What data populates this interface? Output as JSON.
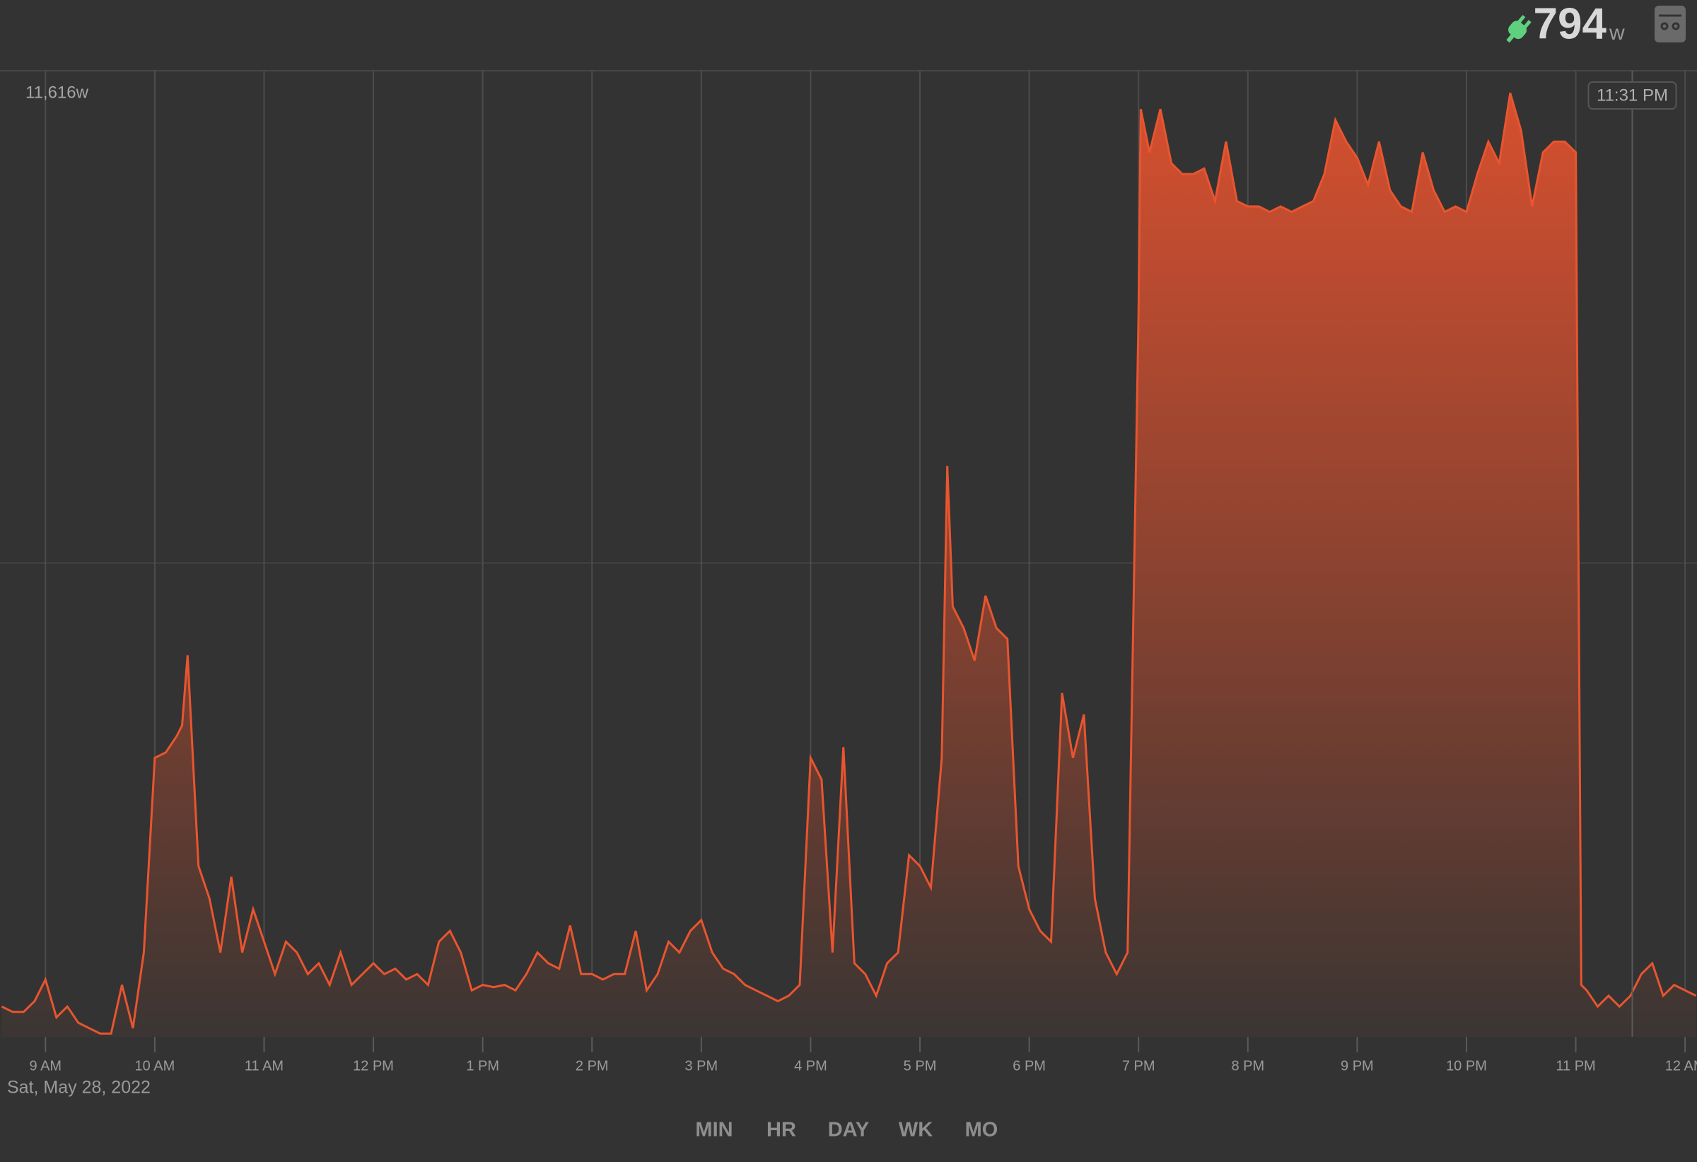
{
  "header": {
    "power": "794",
    "unit": "w"
  },
  "chart_data": {
    "type": "area",
    "x": [
      8.6,
      8.7,
      8.8,
      8.9,
      9.0,
      9.1,
      9.2,
      9.3,
      9.4,
      9.5,
      9.6,
      9.7,
      9.8,
      9.9,
      10.0,
      10.1,
      10.2,
      10.25,
      10.3,
      10.4,
      10.5,
      10.6,
      10.7,
      10.8,
      10.9,
      11.0,
      11.1,
      11.2,
      11.3,
      11.4,
      11.5,
      11.6,
      11.7,
      11.8,
      11.9,
      12.0,
      12.1,
      12.2,
      12.3,
      12.4,
      12.5,
      12.6,
      12.7,
      12.8,
      12.9,
      13.0,
      13.1,
      13.2,
      13.3,
      13.4,
      13.5,
      13.6,
      13.7,
      13.8,
      13.9,
      14.0,
      14.1,
      14.2,
      14.3,
      14.4,
      14.5,
      14.6,
      14.7,
      14.8,
      14.9,
      15.0,
      15.1,
      15.2,
      15.3,
      15.4,
      15.5,
      15.6,
      15.7,
      15.8,
      15.9,
      16.0,
      16.1,
      16.2,
      16.3,
      16.4,
      16.5,
      16.6,
      16.7,
      16.8,
      16.9,
      17.0,
      17.1,
      17.2,
      17.25,
      17.3,
      17.4,
      17.5,
      17.6,
      17.7,
      17.8,
      17.9,
      18.0,
      18.1,
      18.2,
      18.3,
      18.4,
      18.5,
      18.6,
      18.7,
      18.8,
      18.9,
      19.0,
      19.02,
      19.1,
      19.2,
      19.3,
      19.4,
      19.5,
      19.6,
      19.7,
      19.8,
      19.9,
      20.0,
      20.1,
      20.2,
      20.3,
      20.4,
      20.5,
      20.6,
      20.7,
      20.8,
      20.9,
      21.0,
      21.1,
      21.2,
      21.3,
      21.4,
      21.5,
      21.6,
      21.7,
      21.8,
      21.9,
      22.0,
      22.1,
      22.2,
      22.3,
      22.4,
      22.5,
      22.6,
      22.7,
      22.8,
      22.9,
      23.0,
      23.05,
      23.1,
      23.2,
      23.3,
      23.4,
      23.5,
      23.6,
      23.7,
      23.8,
      23.9,
      24.0,
      24.1
    ],
    "values": [
      364,
      299,
      299,
      429,
      689,
      234,
      364,
      169,
      104,
      39,
      39,
      624,
      104,
      1014,
      3354,
      3419,
      3614,
      3744,
      4589,
      2054,
      1664,
      1014,
      1924,
      1014,
      1534,
      1144,
      754,
      1144,
      1014,
      754,
      884,
      624,
      1014,
      624,
      754,
      884,
      754,
      819,
      689,
      754,
      624,
      1144,
      1274,
      1014,
      559,
      624,
      598,
      624,
      559,
      754,
      1014,
      884,
      819,
      1339,
      754,
      754,
      689,
      754,
      754,
      1274,
      559,
      754,
      1144,
      1014,
      1274,
      1404,
      1014,
      819,
      754,
      624,
      559,
      494,
      429,
      494,
      624,
      3354,
      3094,
      1014,
      3484,
      884,
      754,
      494,
      884,
      1014,
      2184,
      2054,
      1794,
      3354,
      6864,
      5174,
      4914,
      4524,
      5304,
      4914,
      4784,
      2054,
      1534,
      1274,
      1144,
      4134,
      3354,
      3874,
      1664,
      1014,
      754,
      1014,
      8684,
      11154,
      10634,
      11154,
      10504,
      10374,
      10374,
      10439,
      10049,
      10764,
      10049,
      9984,
      9984,
      9919,
      9984,
      9919,
      9984,
      10049,
      10374,
      11024,
      10764,
      10569,
      10244,
      10764,
      10179,
      9984,
      9919,
      10634,
      10179,
      9919,
      9984,
      9919,
      10374,
      10764,
      10504,
      11349,
      10894,
      9984,
      10634,
      10764,
      10764,
      10634,
      624,
      559,
      364,
      494,
      364,
      494,
      754,
      884,
      494,
      624,
      559,
      494
    ],
    "color": "#e8552f",
    "xlim": [
      8.584,
      24.109
    ],
    "xticks": [
      {
        "value": 9,
        "label": "9 AM"
      },
      {
        "value": 10,
        "label": "10 AM"
      },
      {
        "value": 11,
        "label": "11 AM"
      },
      {
        "value": 12,
        "label": "12 PM"
      },
      {
        "value": 13,
        "label": "1 PM"
      },
      {
        "value": 14,
        "label": "2 PM"
      },
      {
        "value": 15,
        "label": "3 PM"
      },
      {
        "value": 16,
        "label": "4 PM"
      },
      {
        "value": 17,
        "label": "5 PM"
      },
      {
        "value": 18,
        "label": "6 PM"
      },
      {
        "value": 19,
        "label": "7 PM"
      },
      {
        "value": 20,
        "label": "8 PM"
      },
      {
        "value": 21,
        "label": "9 PM"
      },
      {
        "value": 22,
        "label": "10 PM"
      },
      {
        "value": 23,
        "label": "11 PM"
      },
      {
        "value": 24,
        "label": "12 AM"
      }
    ],
    "ylim": [
      0,
      11616
    ],
    "yticks": [
      {
        "value": 11616,
        "label": "11,616w"
      }
    ],
    "cursor": {
      "x": 23.517,
      "label": "11:31 PM"
    },
    "date": "Sat, May 28, 2022"
  },
  "buttons": [
    "MIN",
    "HR",
    "DAY",
    "WK",
    "MO"
  ]
}
